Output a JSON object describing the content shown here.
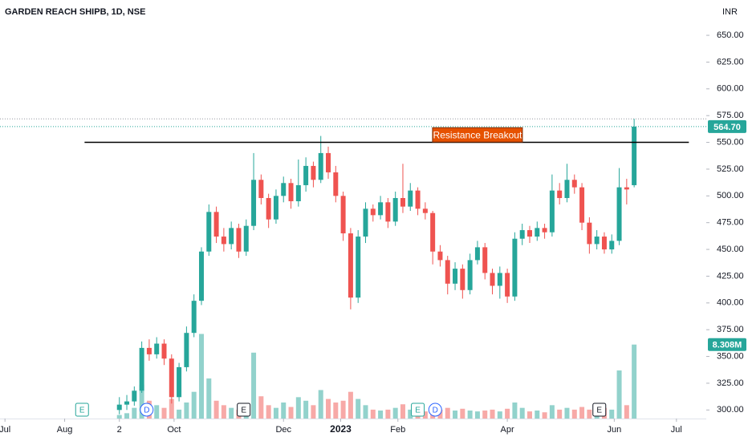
{
  "chart_data": {
    "type": "candlestick",
    "title": "GARDEN REACH SHIPB, 1D, NSE",
    "currency": "INR",
    "up_color": "#26a69a",
    "down_color": "#ef5350",
    "xlim": [
      -2,
      282
    ],
    "xticks": [
      {
        "value": 0,
        "label": "Jul"
      },
      {
        "value": 24,
        "label": "Aug"
      },
      {
        "value": 46,
        "label": "2"
      },
      {
        "value": 68,
        "label": "Oct"
      },
      {
        "value": 112,
        "label": "Dec"
      },
      {
        "value": 135,
        "label": "2023"
      },
      {
        "value": 158,
        "label": "Feb"
      },
      {
        "value": 202,
        "label": "Apr"
      },
      {
        "value": 245,
        "label": "Jun"
      },
      {
        "value": 270,
        "label": "Jul"
      }
    ],
    "ylim": [
      292,
      683
    ],
    "yticks": [
      {
        "value": 300,
        "label": "300.00"
      },
      {
        "value": 325,
        "label": "325.00"
      },
      {
        "value": 350,
        "label": "350.00"
      },
      {
        "value": 375,
        "label": "375.00"
      },
      {
        "value": 400,
        "label": "400.00"
      },
      {
        "value": 425,
        "label": "425.00"
      },
      {
        "value": 450,
        "label": "450.00"
      },
      {
        "value": 475,
        "label": "475.00"
      },
      {
        "value": 500,
        "label": "500.00"
      },
      {
        "value": 525,
        "label": "525.00"
      },
      {
        "value": 550,
        "label": "550.00"
      },
      {
        "value": 575,
        "label": "575.00"
      },
      {
        "value": 600,
        "label": "600.00"
      },
      {
        "value": 625,
        "label": "625.00"
      },
      {
        "value": 650,
        "label": "650.00"
      }
    ],
    "y2lim": [
      0,
      47
    ],
    "x": [
      46,
      49,
      52,
      55,
      58,
      61,
      64,
      67,
      70,
      73,
      76,
      79,
      82,
      85,
      88,
      91,
      94,
      97,
      100,
      103,
      106,
      109,
      112,
      115,
      118,
      121,
      124,
      127,
      130,
      133,
      136,
      139,
      142,
      145,
      148,
      151,
      154,
      157,
      160,
      163,
      166,
      169,
      172,
      175,
      178,
      181,
      184,
      187,
      190,
      193,
      196,
      199,
      202,
      205,
      208,
      211,
      214,
      217,
      220,
      223,
      226,
      229,
      232,
      235,
      238,
      241,
      244,
      247,
      250,
      253
    ],
    "open": [
      300,
      305,
      308,
      318,
      358,
      352,
      362,
      348,
      312,
      340,
      372,
      402,
      448,
      485,
      462,
      455,
      470,
      448,
      472,
      515,
      498,
      478,
      500,
      512,
      495,
      510,
      528,
      515,
      540,
      522,
      500,
      465,
      405,
      462,
      488,
      482,
      494,
      476,
      498,
      490,
      505,
      488,
      484,
      448,
      440,
      418,
      432,
      412,
      440,
      452,
      428,
      416,
      428,
      406,
      460,
      468,
      462,
      470,
      466,
      505,
      498,
      515,
      508,
      475,
      455,
      462,
      450,
      458,
      508,
      510
    ],
    "high": [
      312,
      314,
      322,
      364,
      366,
      368,
      366,
      352,
      344,
      378,
      408,
      452,
      492,
      490,
      470,
      476,
      474,
      478,
      540,
      520,
      502,
      506,
      518,
      516,
      534,
      536,
      532,
      556,
      546,
      528,
      504,
      470,
      468,
      494,
      492,
      500,
      498,
      504,
      530,
      512,
      508,
      494,
      486,
      454,
      444,
      438,
      436,
      446,
      458,
      456,
      432,
      434,
      432,
      466,
      474,
      472,
      476,
      474,
      520,
      512,
      530,
      520,
      512,
      480,
      468,
      466,
      464,
      526,
      516,
      572
    ],
    "low": [
      296,
      300,
      304,
      316,
      346,
      348,
      342,
      306,
      308,
      336,
      368,
      398,
      444,
      456,
      448,
      450,
      442,
      444,
      468,
      492,
      470,
      474,
      494,
      488,
      490,
      504,
      508,
      512,
      516,
      494,
      458,
      394,
      400,
      456,
      476,
      478,
      470,
      472,
      484,
      486,
      482,
      478,
      436,
      434,
      408,
      412,
      404,
      408,
      436,
      422,
      408,
      404,
      400,
      402,
      454,
      456,
      458,
      460,
      462,
      492,
      494,
      502,
      468,
      446,
      450,
      446,
      446,
      454,
      492,
      508
    ],
    "close": [
      305,
      308,
      318,
      358,
      352,
      362,
      348,
      312,
      340,
      372,
      402,
      448,
      485,
      462,
      455,
      470,
      448,
      472,
      515,
      498,
      478,
      500,
      512,
      495,
      510,
      528,
      515,
      540,
      522,
      500,
      465,
      405,
      462,
      488,
      482,
      494,
      476,
      498,
      490,
      505,
      488,
      484,
      448,
      440,
      418,
      432,
      412,
      440,
      452,
      428,
      416,
      428,
      406,
      460,
      468,
      462,
      470,
      466,
      505,
      498,
      515,
      508,
      475,
      455,
      462,
      450,
      458,
      508,
      506,
      564.7
    ],
    "volume": [
      0.4,
      0.6,
      1.2,
      3.8,
      2.0,
      1.5,
      1.2,
      2.2,
      1.0,
      1.8,
      3.0,
      9.5,
      4.5,
      2.0,
      1.5,
      1.2,
      1.0,
      1.4,
      7.4,
      2.5,
      1.5,
      1.2,
      1.8,
      1.3,
      2.4,
      2.0,
      1.5,
      3.2,
      2.2,
      1.8,
      2.0,
      3.0,
      2.2,
      1.5,
      1.0,
      0.9,
      1.0,
      1.2,
      1.6,
      1.0,
      0.9,
      0.8,
      1.4,
      1.0,
      1.2,
      0.9,
      1.1,
      0.9,
      0.8,
      0.9,
      1.0,
      0.8,
      1.1,
      1.8,
      1.2,
      0.8,
      0.9,
      0.7,
      1.5,
      1.0,
      1.2,
      1.0,
      1.3,
      1.0,
      0.8,
      1.2,
      1.0,
      5.4,
      1.5,
      8.308
    ],
    "last_price": {
      "value": 564.7,
      "label": "564.70"
    },
    "last_volume": {
      "value": 8.308,
      "label": "8.308M"
    },
    "resistance": {
      "value": 550,
      "x": [
        32,
        275
      ],
      "color": "#000000"
    },
    "annotation": {
      "text": "Resistance Breakout",
      "x": 190,
      "y": 557,
      "color": "#e65100"
    },
    "events": [
      {
        "label": "E",
        "x": 31,
        "color": "#26a69a"
      },
      {
        "label": "D",
        "x": 57,
        "color": "#2962ff"
      },
      {
        "label": "E",
        "x": 96,
        "color": "#131722"
      },
      {
        "label": "E",
        "x": 166,
        "color": "#26a69a"
      },
      {
        "label": "D",
        "x": 173,
        "color": "#2962ff"
      },
      {
        "label": "E",
        "x": 239,
        "color": "#131722"
      }
    ]
  }
}
